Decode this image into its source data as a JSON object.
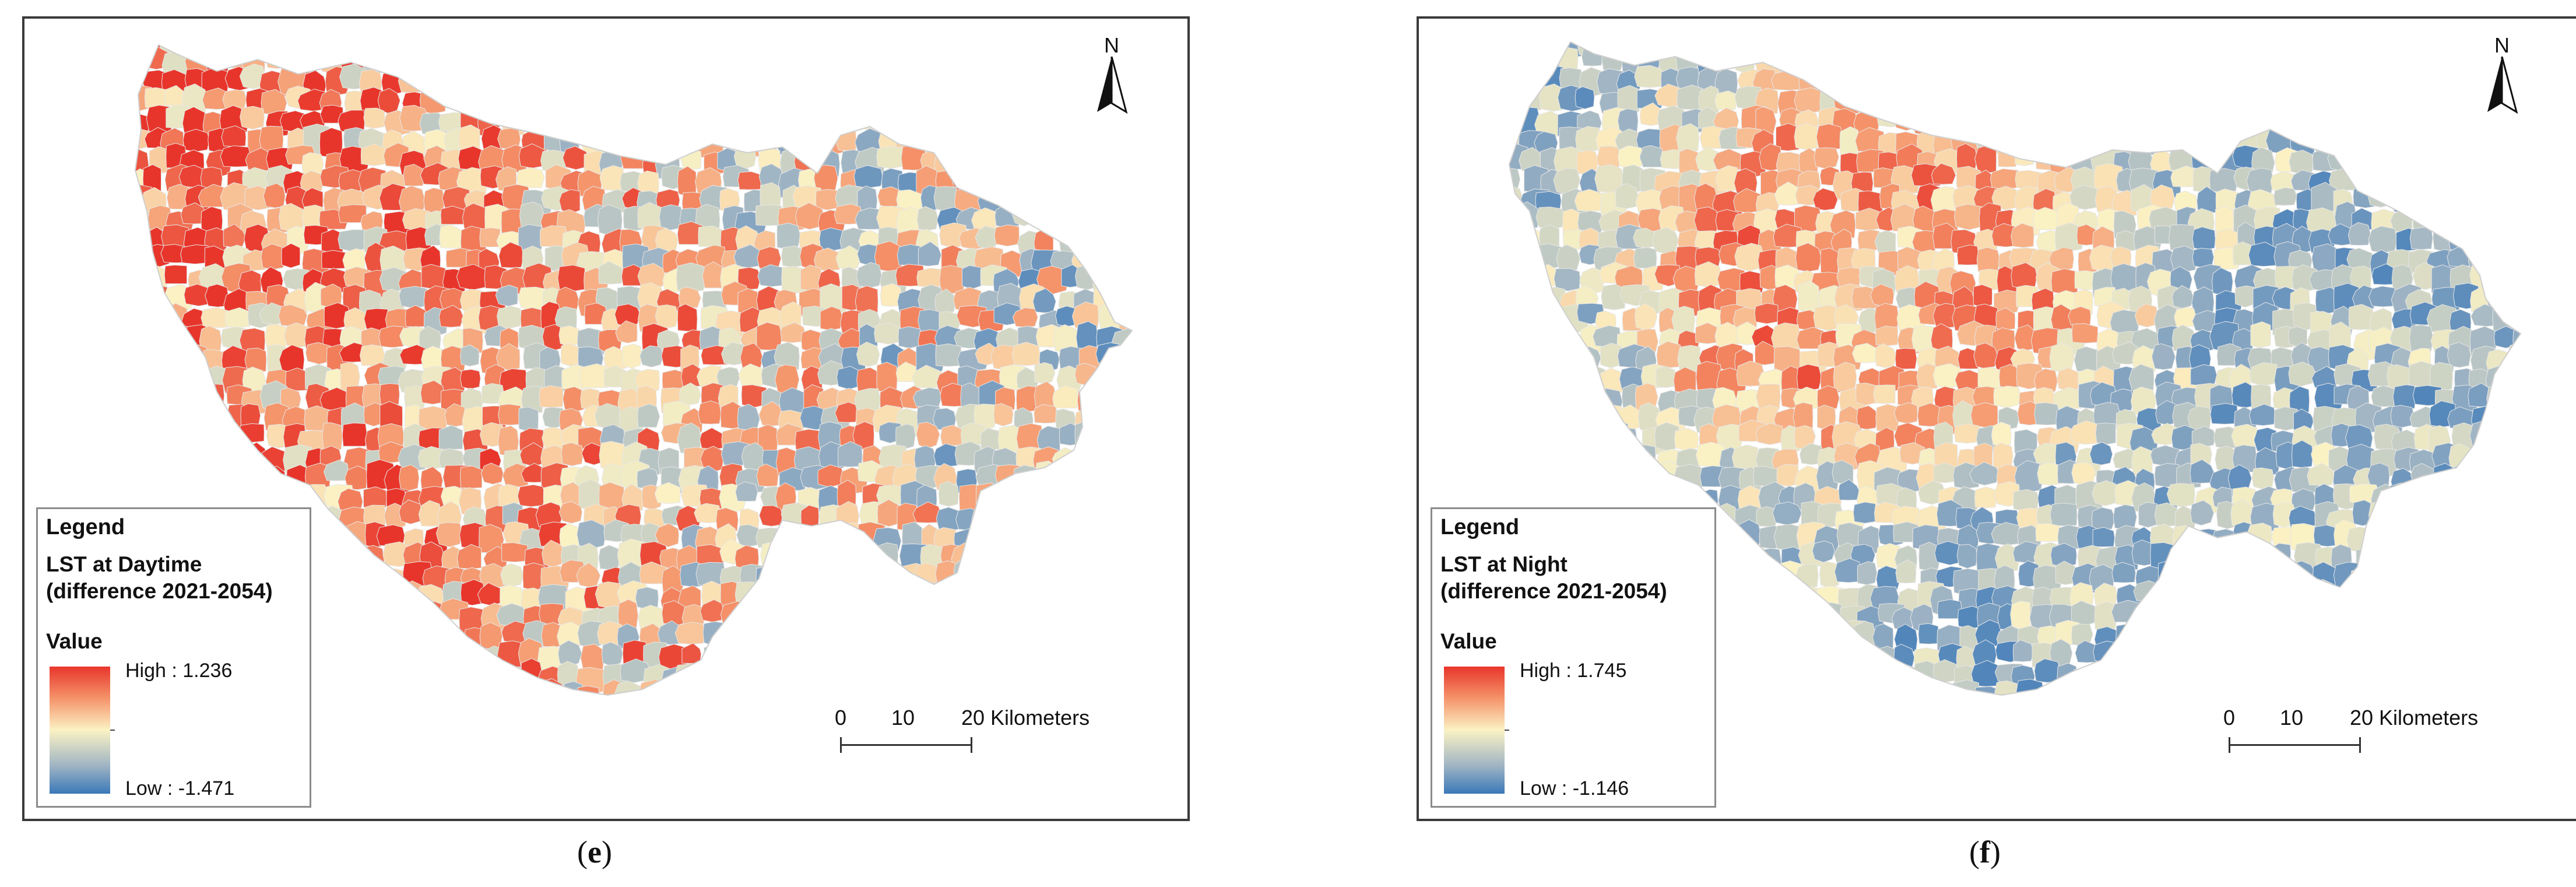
{
  "panels": [
    {
      "id": "e",
      "caption_open": "(",
      "caption_letter": "e",
      "caption_close": ")",
      "north_label": "N",
      "legend": {
        "title": "Legend",
        "layer_line1": "LST at Daytime",
        "layer_line2": "(difference 2021-2054)",
        "value_label": "Value",
        "high_label": "High : 1.236",
        "low_label": "Low : -1.471"
      },
      "scale": {
        "tick_0": "0",
        "tick_10": "10",
        "tick_20": "20 Kilometers"
      },
      "color_ramp": [
        "#e8352b",
        "#f5936a",
        "#fbf2c4",
        "#9fb4c4",
        "#3a78b8"
      ]
    },
    {
      "id": "f",
      "caption_open": "(",
      "caption_letter": "f",
      "caption_close": ")",
      "north_label": "N",
      "legend": {
        "title": "Legend",
        "layer_line1": "LST at Night",
        "layer_line2": "(difference 2021-2054)",
        "value_label": "Value",
        "high_label": "High : 1.745",
        "low_label": "Low : -1.146"
      },
      "scale": {
        "tick_0": "0",
        "tick_10": "10",
        "tick_20": "20 Kilometers"
      },
      "color_ramp": [
        "#e8352b",
        "#f5936a",
        "#fbf2c4",
        "#9fb4c4",
        "#3a78b8"
      ]
    }
  ]
}
